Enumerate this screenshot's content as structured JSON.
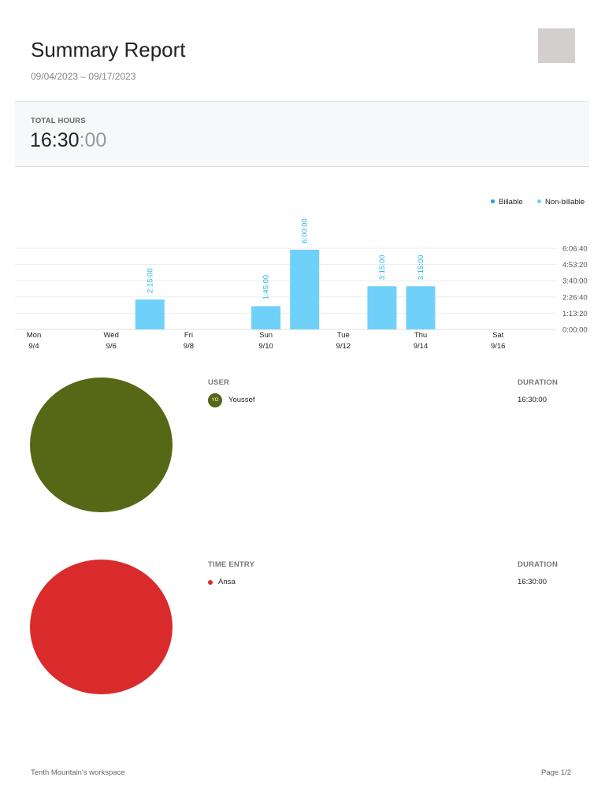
{
  "report": {
    "title": "Summary Report",
    "date_range": "09/04/2023 – 09/17/2023"
  },
  "total": {
    "label": "TOTAL HOURS",
    "value_main": "16:30",
    "value_seconds": ":00"
  },
  "legend": {
    "billable": "Billable",
    "non_billable": "Non-billable",
    "billable_color": "#1b9fdc",
    "non_billable_color": "#6fd0fa"
  },
  "chart_data": {
    "type": "bar",
    "x": [
      "9/4",
      "9/5",
      "9/6",
      "9/7",
      "9/8",
      "9/9",
      "9/10",
      "9/11",
      "9/12",
      "9/13",
      "9/14",
      "9/15",
      "9/16",
      "9/17"
    ],
    "x_tick_labels": [
      {
        "day": "Mon",
        "date": "9/4"
      },
      {
        "day": "Wed",
        "date": "9/6"
      },
      {
        "day": "Fri",
        "date": "9/8"
      },
      {
        "day": "Sun",
        "date": "9/10"
      },
      {
        "day": "Tue",
        "date": "9/12"
      },
      {
        "day": "Thu",
        "date": "9/14"
      },
      {
        "day": "Sat",
        "date": "9/16"
      }
    ],
    "series": [
      {
        "name": "Non-billable",
        "color": "#6fd0fa",
        "values_hours": [
          0,
          0,
          0,
          2.25,
          0,
          0,
          1.75,
          6,
          0,
          3.25,
          3.25,
          0,
          0,
          0
        ],
        "labels": [
          "",
          "",
          "",
          "2:15:00",
          "",
          "",
          "1:45:00",
          "6:00:00",
          "",
          "3:15:00",
          "3:15:00",
          "",
          "",
          ""
        ]
      },
      {
        "name": "Billable",
        "color": "#1b9fdc",
        "values_hours": [
          0,
          0,
          0,
          0,
          0,
          0,
          0,
          0,
          0,
          0,
          0,
          0,
          0,
          0
        ]
      }
    ],
    "y_ticks": [
      "0:00:00",
      "1:13:20",
      "2:26:40",
      "3:40:00",
      "4:53:20",
      "6:06:40"
    ],
    "ylim_hours": [
      0,
      6.111
    ],
    "grid": true,
    "legend_position": "top-right"
  },
  "users_table": {
    "col_user": "USER",
    "col_duration": "DURATION",
    "rows": [
      {
        "initials": "YO",
        "name": "Youssef",
        "duration": "16:30:00",
        "color": "#566716"
      }
    ]
  },
  "entries_table": {
    "col_entry": "TIME ENTRY",
    "col_duration": "DURATION",
    "rows": [
      {
        "name": "Ansa",
        "duration": "16:30:00",
        "color": "#d92b2b"
      }
    ]
  },
  "footer": {
    "workspace": "Tenth Mountain's workspace",
    "page": "Page 1/2"
  }
}
